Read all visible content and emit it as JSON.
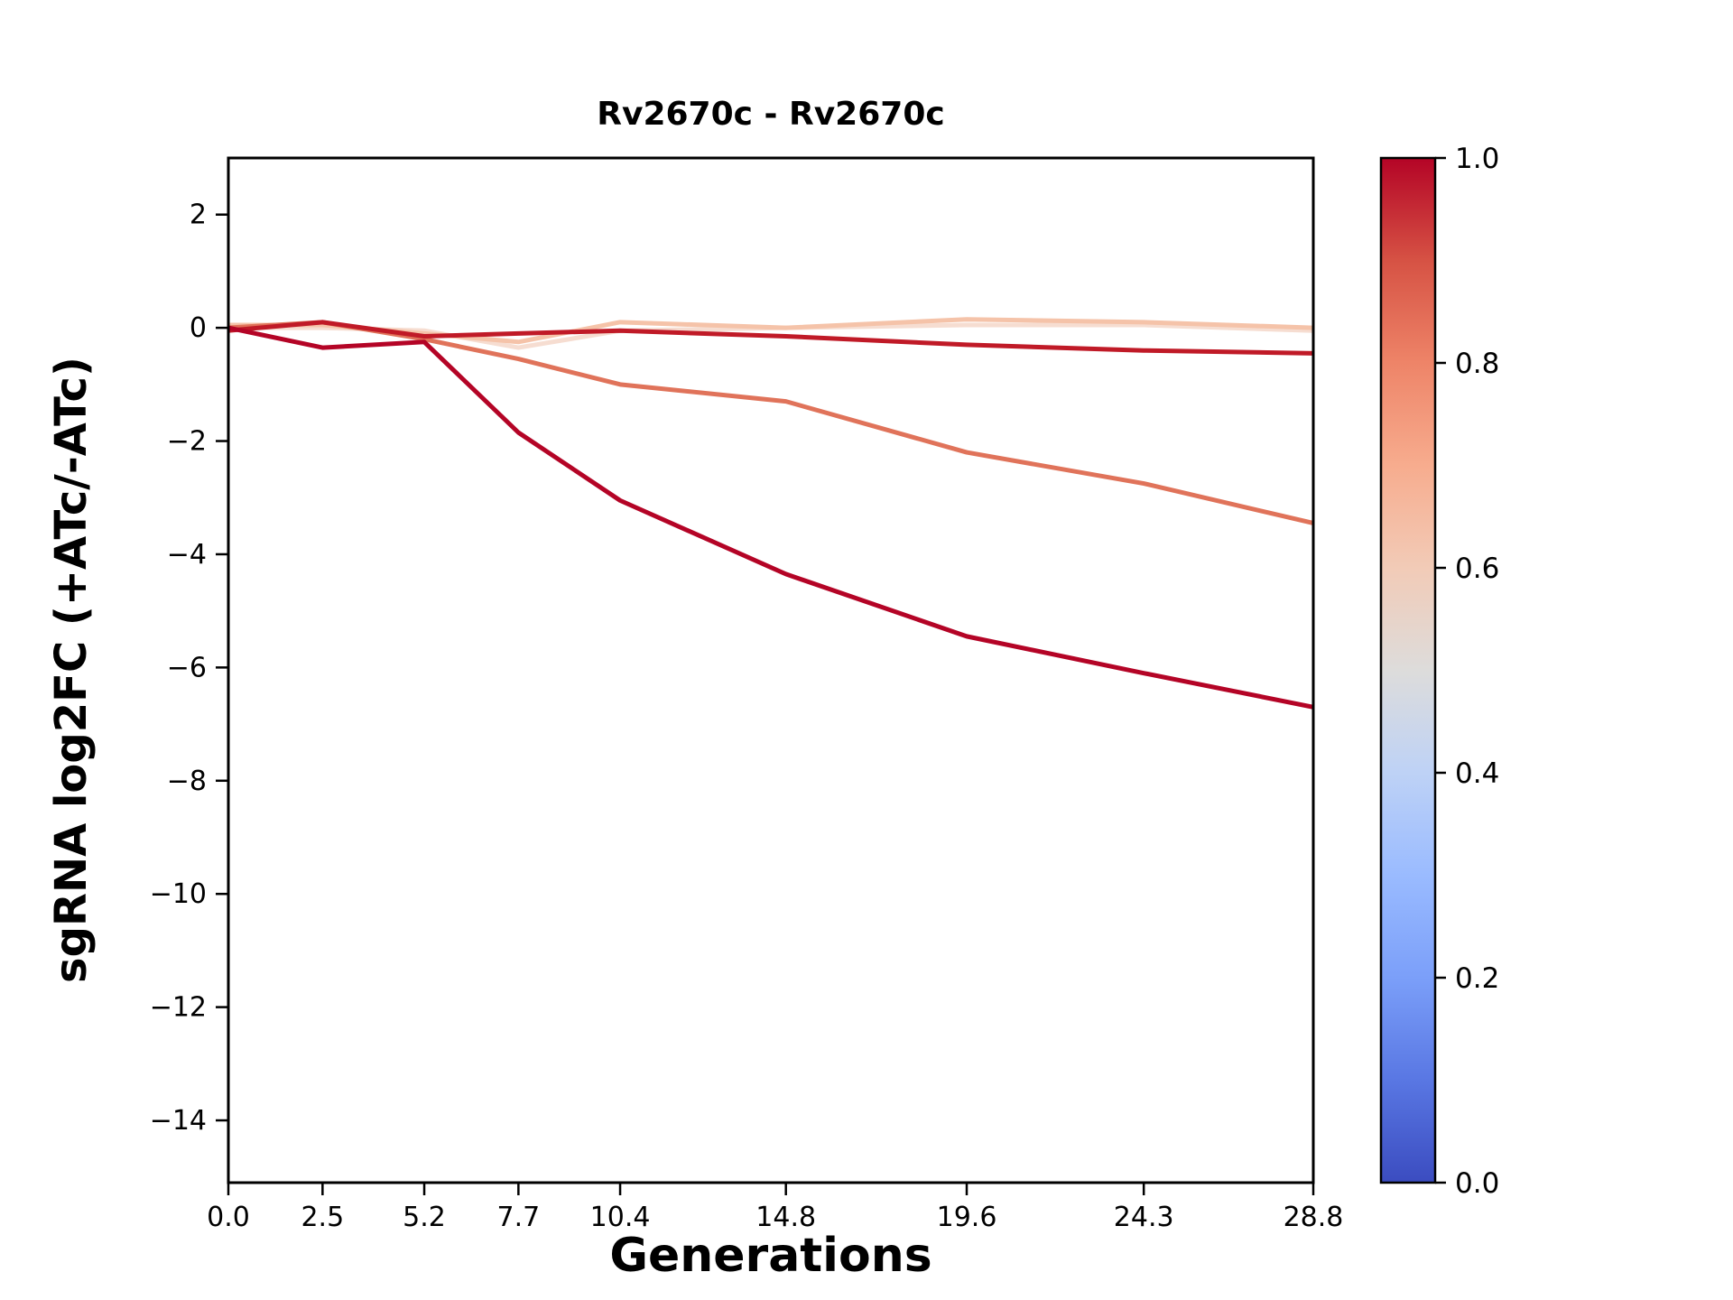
{
  "figure": {
    "background": "#ffffff",
    "axes_color": "#000000"
  },
  "chart_data": {
    "type": "line",
    "title": "Rv2670c - Rv2670c",
    "xlabel": "Generations",
    "ylabel": "sgRNA log2FC (+ATc/-ATc)",
    "x": [
      0.0,
      2.5,
      5.2,
      7.7,
      10.4,
      14.8,
      19.6,
      24.3,
      28.8
    ],
    "xtick_labels": [
      "0.0",
      "2.5",
      "5.2",
      "7.7",
      "10.4",
      "14.8",
      "19.6",
      "24.3",
      "28.8"
    ],
    "ytick_values": [
      2,
      0,
      -2,
      -4,
      -6,
      -8,
      -10,
      -12,
      -14
    ],
    "ytick_labels": [
      "2",
      "0",
      "−2",
      "−4",
      "−6",
      "−8",
      "−10",
      "−12",
      "−14"
    ],
    "xlim": [
      0,
      28.8
    ],
    "ylim": [
      -15.1,
      3.0
    ],
    "grid": false,
    "legend": "none",
    "line_width": 5,
    "series": [
      {
        "name": "sgRNA-1",
        "color_value": 0.56,
        "color": "#f6ddd1",
        "values": [
          0.0,
          0.0,
          -0.05,
          -0.35,
          -0.05,
          0.0,
          0.05,
          0.05,
          -0.05
        ]
      },
      {
        "name": "sgRNA-2",
        "color_value": 0.63,
        "color": "#f5c3a9",
        "values": [
          0.05,
          0.05,
          -0.1,
          -0.25,
          0.1,
          0.0,
          0.15,
          0.1,
          0.0
        ]
      },
      {
        "name": "sgRNA-3",
        "color_value": 0.8,
        "color": "#e0735a",
        "values": [
          0.0,
          0.1,
          -0.2,
          -0.55,
          -1.0,
          -1.3,
          -2.2,
          -2.75,
          -3.45
        ]
      },
      {
        "name": "sgRNA-4",
        "color_value": 0.95,
        "color": "#c01a27",
        "values": [
          -0.05,
          0.1,
          -0.15,
          -0.1,
          -0.05,
          -0.15,
          -0.3,
          -0.4,
          -0.45
        ]
      },
      {
        "name": "sgRNA-5",
        "color_value": 1.0,
        "color": "#b40426",
        "values": [
          0.0,
          -0.35,
          -0.25,
          -1.85,
          -3.05,
          -4.35,
          -5.45,
          -6.1,
          -6.7
        ]
      }
    ],
    "colorbar": {
      "min": 0.0,
      "max": 1.0,
      "tick_labels": [
        "0.0",
        "0.2",
        "0.4",
        "0.6",
        "0.8",
        "1.0"
      ],
      "colormap": "coolwarm",
      "stops": [
        {
          "offset": 0.0,
          "color": "#3b4cc0"
        },
        {
          "offset": 0.1,
          "color": "#5977e3"
        },
        {
          "offset": 0.2,
          "color": "#7b9ff9"
        },
        {
          "offset": 0.3,
          "color": "#9abbff"
        },
        {
          "offset": 0.4,
          "color": "#bed2f6"
        },
        {
          "offset": 0.5,
          "color": "#dddcdb"
        },
        {
          "offset": 0.6,
          "color": "#f2cbb7"
        },
        {
          "offset": 0.7,
          "color": "#f7ac8e"
        },
        {
          "offset": 0.8,
          "color": "#ee8468"
        },
        {
          "offset": 0.9,
          "color": "#d65244"
        },
        {
          "offset": 1.0,
          "color": "#b40426"
        }
      ]
    }
  }
}
